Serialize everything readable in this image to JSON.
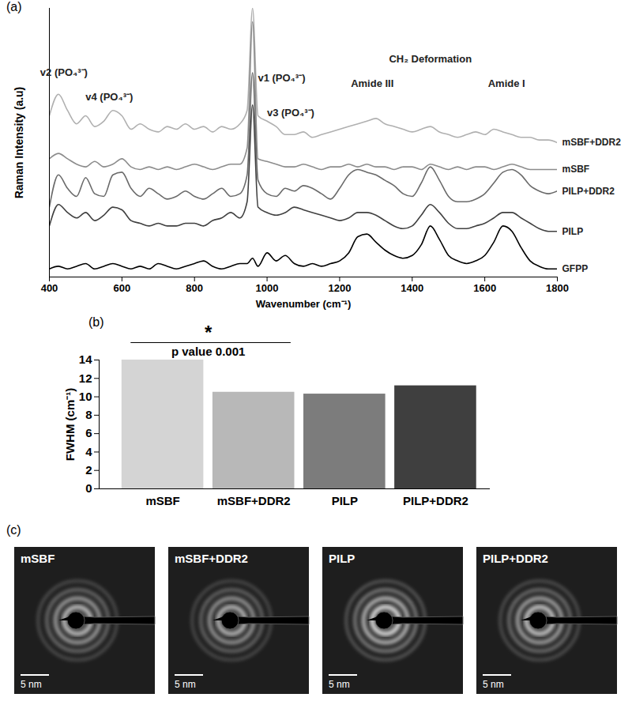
{
  "chart_data": [
    {
      "type": "line",
      "title": "(a)",
      "x_label": "Wavenumber (cm⁻¹)",
      "y_label": "Raman Intensity (a.u)",
      "tick_labels": "x",
      "xlim": [
        400,
        1800
      ],
      "xticks": [
        400,
        600,
        800,
        1000,
        1200,
        1400,
        1600,
        1800
      ],
      "ylim": [
        0,
        100
      ],
      "x": [
        400,
        425,
        450,
        475,
        500,
        525,
        550,
        575,
        600,
        625,
        650,
        675,
        700,
        725,
        750,
        775,
        800,
        825,
        850,
        875,
        900,
        925,
        945,
        960,
        975,
        1000,
        1025,
        1050,
        1075,
        1100,
        1125,
        1150,
        1175,
        1200,
        1225,
        1250,
        1275,
        1300,
        1325,
        1350,
        1375,
        1400,
        1425,
        1450,
        1475,
        1500,
        1525,
        1550,
        1575,
        1600,
        1625,
        1650,
        1675,
        1700,
        1725,
        1750,
        1775,
        1800
      ],
      "series": [
        {
          "name": "mSBF+DDR2",
          "color": "#b0b0b0",
          "values": [
            60,
            68,
            62,
            57,
            60,
            56,
            58,
            62,
            60,
            55,
            57,
            55,
            54,
            56,
            55,
            57,
            55,
            56,
            54,
            56,
            55,
            57,
            62,
            100,
            60,
            58,
            56,
            53,
            53,
            54,
            52,
            53,
            54,
            55,
            56,
            57,
            58,
            59,
            57,
            56,
            55,
            54,
            55,
            56,
            54,
            53,
            52,
            53,
            54,
            53,
            55,
            54,
            53,
            52,
            52,
            51,
            51,
            50
          ]
        },
        {
          "name": "mSBF",
          "color": "#8c8c8c",
          "values": [
            44,
            46,
            44,
            42,
            41,
            43,
            41,
            42,
            44,
            41,
            40,
            41,
            40,
            41,
            40,
            41,
            42,
            41,
            40,
            41,
            42,
            42,
            48,
            95,
            44,
            43,
            42,
            41,
            41,
            42,
            41,
            40,
            41,
            41,
            42,
            41,
            42,
            41,
            41,
            40,
            41,
            41,
            40,
            42,
            41,
            40,
            41,
            40,
            41,
            41,
            40,
            41,
            42,
            41,
            40,
            40,
            40,
            40
          ]
        },
        {
          "name": "PILP+DDR2",
          "color": "#6a6a6a",
          "values": [
            26,
            38,
            33,
            30,
            37,
            31,
            30,
            38,
            39,
            33,
            30,
            33,
            31,
            29,
            30,
            32,
            30,
            29,
            31,
            33,
            30,
            31,
            38,
            76,
            36,
            31,
            30,
            33,
            32,
            34,
            33,
            31,
            29,
            33,
            38,
            40,
            39,
            38,
            36,
            34,
            31,
            30,
            35,
            41,
            36,
            30,
            28,
            28,
            29,
            31,
            35,
            39,
            40,
            38,
            34,
            32,
            31,
            32
          ]
        },
        {
          "name": "PILP",
          "color": "#404040",
          "values": [
            19,
            27,
            24,
            22,
            24,
            21,
            23,
            26,
            25,
            21,
            20,
            19,
            20,
            19,
            19,
            20,
            20,
            19,
            21,
            22,
            24,
            22,
            28,
            64,
            26,
            24,
            23,
            24,
            26,
            25,
            24,
            23,
            22,
            21,
            22,
            24,
            24,
            23,
            21,
            19,
            18,
            19,
            23,
            27,
            24,
            20,
            18,
            18,
            19,
            20,
            22,
            24,
            24,
            22,
            20,
            18,
            17,
            17
          ]
        },
        {
          "name": "GFPP",
          "color": "#000000",
          "values": [
            3,
            4,
            3,
            4,
            5,
            3,
            4,
            5,
            4,
            3,
            4,
            3,
            5,
            4,
            3,
            4,
            5,
            6,
            4,
            3,
            4,
            5,
            5,
            7,
            4,
            9,
            6,
            8,
            5,
            4,
            5,
            4,
            5,
            6,
            9,
            15,
            16,
            13,
            10,
            8,
            7,
            8,
            12,
            19,
            14,
            8,
            6,
            5,
            6,
            8,
            13,
            19,
            17,
            11,
            6,
            4,
            3,
            3
          ]
        }
      ],
      "annotations": [
        {
          "text": "v2 (PO₄³⁻)",
          "x": 440,
          "y": 76
        },
        {
          "text": "v4 (PO₄³⁻)",
          "x": 565,
          "y": 67
        },
        {
          "text": "v1 (PO₄³⁻)",
          "x": 1040,
          "y": 74
        },
        {
          "text": "v3 (PO₄³⁻)",
          "x": 1065,
          "y": 61
        },
        {
          "text": "Amide III",
          "x": 1290,
          "y": 72
        },
        {
          "text": "CH₂ Deformation",
          "x": 1450,
          "y": 81
        },
        {
          "text": "Amide I",
          "x": 1660,
          "y": 72
        }
      ]
    },
    {
      "type": "bar",
      "title": "(b)",
      "y_label": "FWHM (cm⁻¹)",
      "categories": [
        "mSBF",
        "mSBF+DDR2",
        "PILP",
        "PILP+DDR2"
      ],
      "values": [
        14.0,
        10.5,
        10.3,
        11.2
      ],
      "colors": [
        "#d4d4d4",
        "#b8b8b8",
        "#7c7c7c",
        "#3f3f3f"
      ],
      "ylim": [
        0,
        14
      ],
      "yticks": [
        0,
        2,
        4,
        6,
        8,
        10,
        12,
        14
      ],
      "annotations": [
        {
          "text": "*",
          "between": [
            "mSBF",
            "mSBF+DDR2"
          ]
        },
        {
          "text": "p value 0.001",
          "between": [
            "mSBF",
            "mSBF+DDR2"
          ]
        }
      ]
    }
  ],
  "figure_c": {
    "title": "(c)",
    "panels": [
      {
        "label": "mSBF",
        "scale_bar": "5 nm"
      },
      {
        "label": "mSBF+DDR2",
        "scale_bar": "5 nm"
      },
      {
        "label": "PILP",
        "scale_bar": "5 nm"
      },
      {
        "label": "PILP+DDR2",
        "scale_bar": "5 nm"
      }
    ]
  }
}
